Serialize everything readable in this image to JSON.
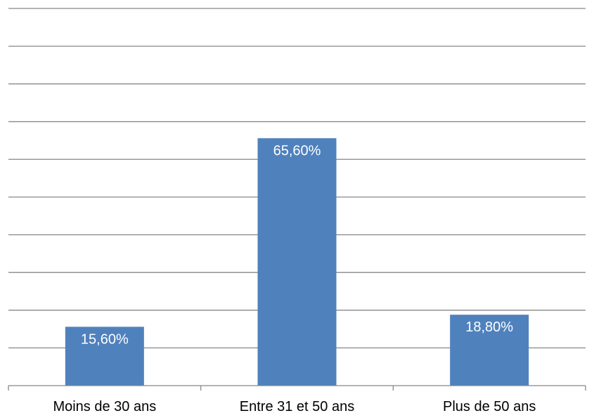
{
  "chart_data": {
    "type": "bar",
    "categories": [
      "Moins de 30 ans",
      "Entre 31 et 50 ans",
      "Plus de 50 ans"
    ],
    "values": [
      15.6,
      65.6,
      18.8
    ],
    "data_labels": [
      "15,60%",
      "65,60%",
      "18,80%"
    ],
    "title": "",
    "xlabel": "",
    "ylabel": "",
    "ylim": [
      0,
      100
    ],
    "gridline_step": 10,
    "grid": true,
    "legend": "none",
    "y_tick_labels_visible": false,
    "bar_color": "#4f81bd",
    "grid_color": "#888888"
  }
}
